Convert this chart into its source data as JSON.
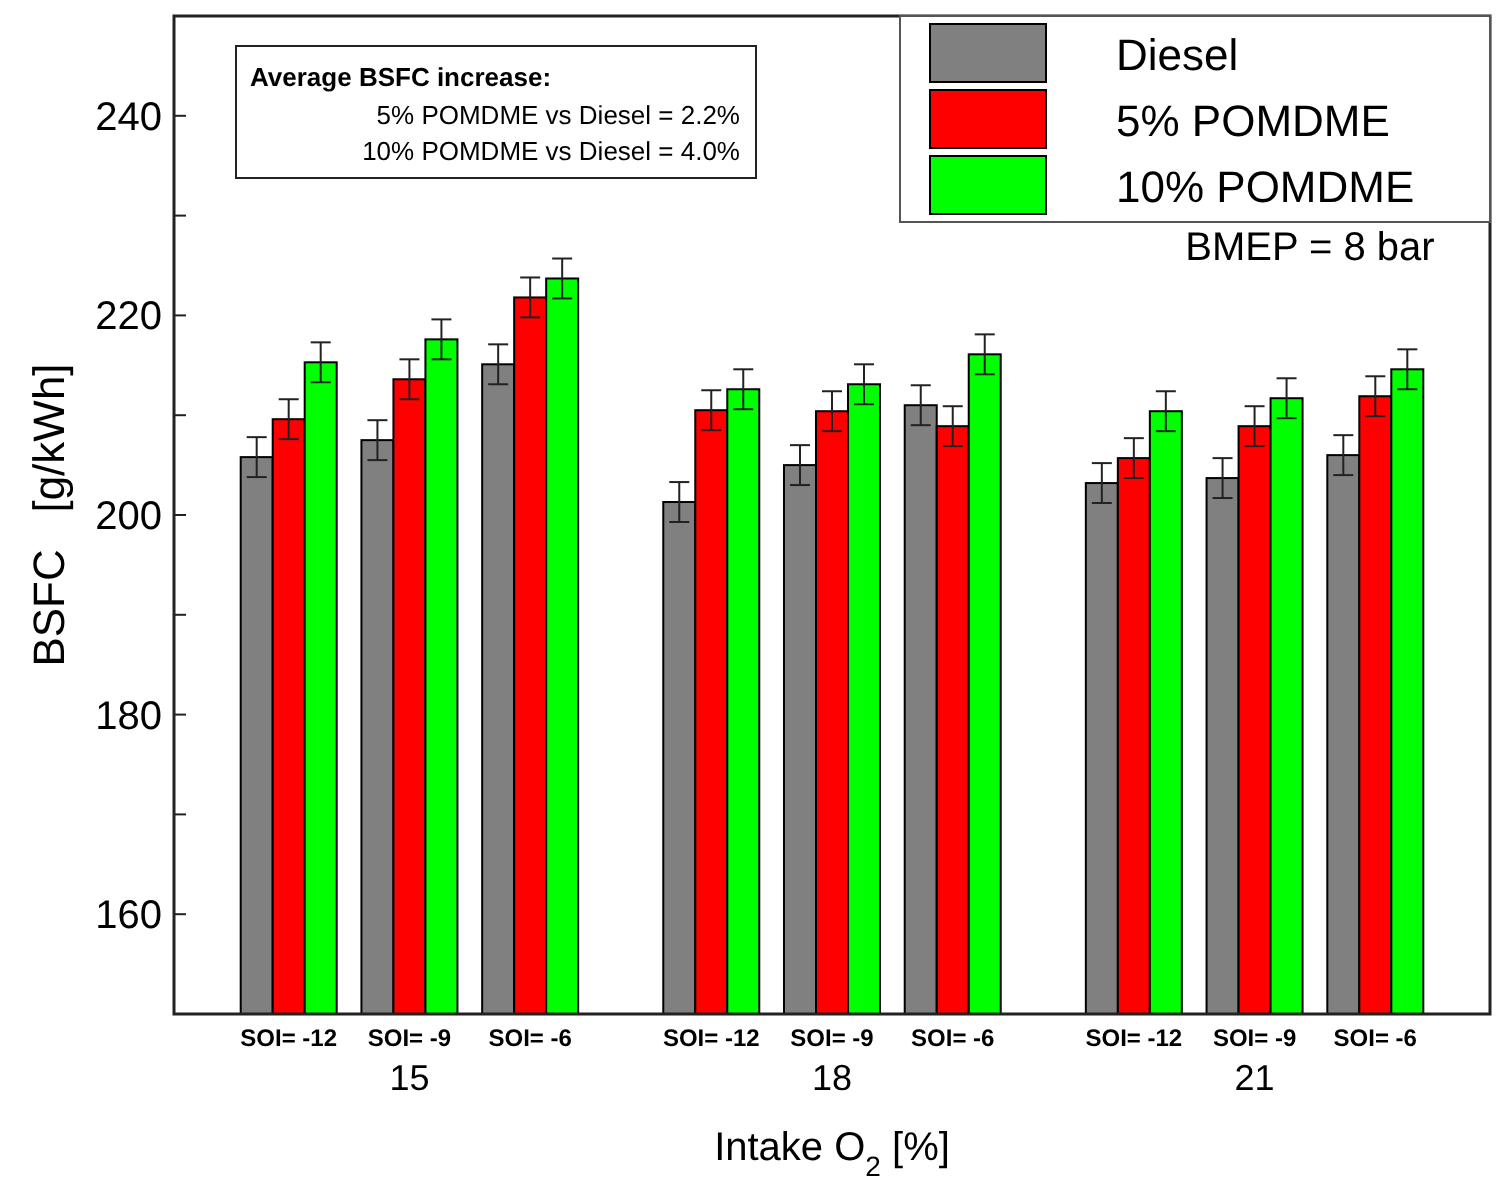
{
  "chart_data": {
    "type": "bar",
    "xlabel": "Intake O$_{2}$ [%]",
    "ylabel": "BSFC   [g/kWh]",
    "categories": [
      "SOI= -12",
      "SOI= -9",
      "SOI= -6",
      "SOI= -12",
      "SOI= -9",
      "SOI= -6",
      "SOI= -12",
      "SOI= -9",
      "SOI= -6"
    ],
    "series": [
      {
        "name": "Diesel",
        "color": "#808080",
        "values": [
          205.8,
          207.5,
          215.1,
          201.3,
          205.0,
          211.0,
          203.2,
          203.7,
          206.0
        ],
        "errors": [
          2,
          2,
          2,
          2,
          2,
          2,
          2,
          2,
          2
        ]
      },
      {
        "name": "5% POMDME",
        "color": "#ff0000",
        "values": [
          209.6,
          213.6,
          221.8,
          210.5,
          210.4,
          208.9,
          205.7,
          208.9,
          211.9
        ],
        "errors": [
          2,
          2,
          2,
          2,
          2,
          2,
          2,
          2,
          2
        ]
      },
      {
        "name": "10% POMDME",
        "color": "#00ff00",
        "values": [
          215.3,
          217.6,
          223.7,
          212.6,
          213.1,
          216.1,
          210.4,
          211.7,
          214.6
        ],
        "errors": [
          2,
          2,
          2,
          2,
          2,
          2,
          2,
          2,
          2
        ]
      }
    ],
    "ylim": [
      150,
      250
    ],
    "yticks": [
      160,
      {
        "value": 170,
        "label": null
      },
      180,
      {
        "value": 190,
        "label": null
      },
      200,
      {
        "value": 210,
        "label": null
      },
      220,
      {
        "value": 230,
        "label": null
      },
      240
    ],
    "legend": "top right",
    "grid": false,
    "annotations": [
      "Average BSFC increase:",
      "5% POMDME vs Diesel = 2.2%",
      "10% POMDME vs Diesel = 4.0%",
      "BMEP = 8 bar",
      "15",
      "18",
      "21"
    ]
  }
}
